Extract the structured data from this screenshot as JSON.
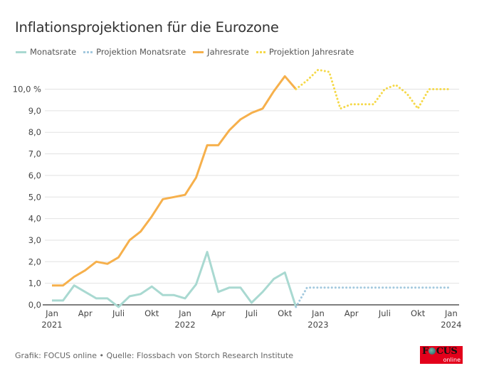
{
  "chart_data": {
    "type": "line",
    "title": "Inflationsprojektionen für die Eurozone",
    "xlabel": "",
    "ylabel": "",
    "ylim": [
      0,
      10
    ],
    "y_ticks": [
      {
        "value": 10,
        "label": "10,0 %"
      },
      {
        "value": 9,
        "label": "9,0"
      },
      {
        "value": 8,
        "label": "8,0"
      },
      {
        "value": 7,
        "label": "7,0"
      },
      {
        "value": 6,
        "label": "6,0"
      },
      {
        "value": 5,
        "label": "5,0"
      },
      {
        "value": 4,
        "label": "4,0"
      },
      {
        "value": 3,
        "label": "3,0"
      },
      {
        "value": 2,
        "label": "2,0"
      },
      {
        "value": 1,
        "label": "1,0"
      },
      {
        "value": 0,
        "label": "0,0"
      }
    ],
    "x_range_months": [
      "2021-01",
      "2024-01"
    ],
    "x_ticks": [
      {
        "month_index": 0,
        "label": "Jan",
        "sublabel": "2021"
      },
      {
        "month_index": 3,
        "label": "Apr",
        "sublabel": ""
      },
      {
        "month_index": 6,
        "label": "Juli",
        "sublabel": ""
      },
      {
        "month_index": 9,
        "label": "Okt",
        "sublabel": ""
      },
      {
        "month_index": 12,
        "label": "Jan",
        "sublabel": "2022"
      },
      {
        "month_index": 15,
        "label": "Apr",
        "sublabel": ""
      },
      {
        "month_index": 18,
        "label": "Juli",
        "sublabel": ""
      },
      {
        "month_index": 21,
        "label": "Okt",
        "sublabel": ""
      },
      {
        "month_index": 24,
        "label": "Jan",
        "sublabel": "2023"
      },
      {
        "month_index": 27,
        "label": "Apr",
        "sublabel": ""
      },
      {
        "month_index": 30,
        "label": "Juli",
        "sublabel": ""
      },
      {
        "month_index": 33,
        "label": "Okt",
        "sublabel": ""
      },
      {
        "month_index": 36,
        "label": "Jan",
        "sublabel": "2024"
      }
    ],
    "grid": true,
    "legend_position": "top-left",
    "series": [
      {
        "name": "Monatsrate",
        "style": "solid",
        "color": "#a9d9d1",
        "start_month_index": 0,
        "values": [
          0.2,
          0.2,
          0.9,
          0.6,
          0.3,
          0.3,
          -0.1,
          0.4,
          0.5,
          0.85,
          0.45,
          0.45,
          0.3,
          0.95,
          2.45,
          0.6,
          0.8,
          0.8,
          0.1,
          0.6,
          1.2,
          1.5,
          -0.1
        ]
      },
      {
        "name": "Projektion Monatsrate",
        "style": "dotted",
        "color": "#a3c9de",
        "start_month_index": 22,
        "values": [
          -0.1,
          0.8,
          0.8,
          0.8,
          0.8,
          0.8,
          0.8,
          0.8,
          0.8,
          0.8,
          0.8,
          0.8,
          0.8,
          0.8,
          0.8
        ]
      },
      {
        "name": "Jahresrate",
        "style": "solid",
        "color": "#f6b04c",
        "start_month_index": 0,
        "values": [
          0.9,
          0.9,
          1.3,
          1.6,
          2.0,
          1.9,
          2.2,
          3.0,
          3.4,
          4.1,
          4.9,
          5.0,
          5.1,
          5.9,
          7.4,
          7.4,
          8.1,
          8.6,
          8.9,
          9.1,
          9.9,
          10.6,
          10.0
        ]
      },
      {
        "name": "Projektion Jahresrate",
        "style": "dotted",
        "color": "#f5d94a",
        "start_month_index": 22,
        "values": [
          10.0,
          10.4,
          10.9,
          10.8,
          9.1,
          9.3,
          9.3,
          9.3,
          10.0,
          10.2,
          9.8,
          9.1,
          10.0,
          10.0,
          10.0
        ]
      }
    ]
  },
  "header": {
    "title": "Inflationsprojektionen für die Eurozone"
  },
  "legend": [
    {
      "label": "Monatsrate",
      "style": "solid",
      "color": "#a9d9d1"
    },
    {
      "label": "Projektion Monatsrate",
      "style": "dotted",
      "color": "#a3c9de"
    },
    {
      "label": "Jahresrate",
      "style": "solid",
      "color": "#f6b04c"
    },
    {
      "label": "Projektion Jahresrate",
      "style": "dotted",
      "color": "#f5d94a"
    }
  ],
  "footer": {
    "source": "Grafik: FOCUS online • Quelle: Flossbach von Storch Research Institute"
  },
  "logo": {
    "word_pre": "F",
    "word_post": "CUS",
    "sub": "online",
    "color": "#e3001b"
  }
}
